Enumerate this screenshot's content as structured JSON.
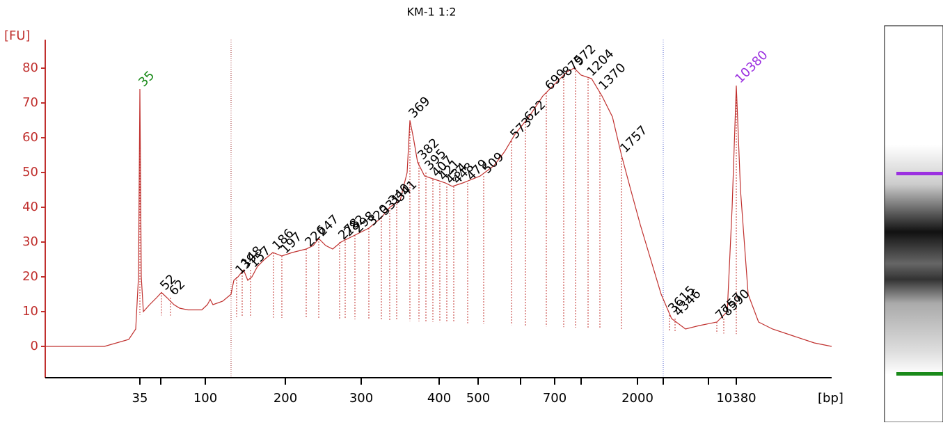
{
  "chart_data": {
    "type": "line",
    "title": "KM-1 1:2",
    "y_label": "[FU]",
    "x_label": "[bp]",
    "color": "#c0302e",
    "xlim": [
      0,
      1130
    ],
    "ylim": [
      -9,
      88.2
    ],
    "yticks": [
      0,
      10,
      20,
      30,
      40,
      50,
      60,
      70,
      80
    ],
    "xticks": [
      {
        "value": 136,
        "label": "35"
      },
      {
        "value": 166,
        "label": null
      },
      {
        "value": 230,
        "label": "100"
      },
      {
        "value": 345,
        "label": "200"
      },
      {
        "value": 454,
        "label": "300"
      },
      {
        "value": 566,
        "label": "400"
      },
      {
        "value": 622,
        "label": "500"
      },
      {
        "value": 683,
        "label": null
      },
      {
        "value": 732,
        "label": "700"
      },
      {
        "value": 770,
        "label": null
      },
      {
        "value": 851,
        "label": "2000"
      },
      {
        "value": 888,
        "label": null
      },
      {
        "value": 953,
        "label": null
      },
      {
        "value": 993,
        "label": "10380"
      }
    ],
    "region": [
      267,
      888
    ],
    "x": [
      0,
      85,
      120,
      130,
      134,
      136,
      138,
      141,
      150,
      160,
      167,
      175,
      185,
      193,
      205,
      225,
      233,
      237,
      241,
      255,
      267,
      271,
      277,
      285,
      291,
      297,
      305,
      315,
      327,
      340,
      355,
      375,
      385,
      393,
      403,
      413,
      425,
      445,
      465,
      483,
      495,
      510,
      520,
      524,
      529,
      535,
      545,
      560,
      575,
      585,
      600,
      625,
      645,
      660,
      675,
      695,
      715,
      735,
      750,
      760,
      770,
      785,
      800,
      815,
      828,
      840,
      855,
      870,
      885,
      900,
      920,
      940,
      965,
      980,
      987,
      993,
      999,
      1010,
      1025,
      1045,
      1075,
      1105,
      1130
    ],
    "values": [
      0,
      0,
      2,
      5,
      20,
      74,
      20,
      10,
      12,
      14,
      15.5,
      14,
      12,
      11,
      10.5,
      10.5,
      12,
      13.5,
      12,
      13,
      15,
      19,
      20,
      22,
      19,
      20,
      23,
      25,
      27,
      26,
      27,
      28,
      29,
      31,
      29,
      28,
      30,
      32,
      34,
      37,
      40,
      42,
      50,
      65,
      60,
      53,
      49,
      48,
      47,
      46,
      47,
      49,
      52,
      56,
      61,
      66,
      72,
      76,
      79,
      80,
      78,
      77,
      72,
      66,
      55,
      46,
      35,
      25,
      15,
      8,
      5,
      6,
      7,
      10,
      40,
      75,
      45,
      15,
      7,
      5,
      3,
      1,
      0
    ],
    "peaks": [
      {
        "label": "35",
        "x": 136,
        "value": 74,
        "color": "#1a8a1a"
      },
      {
        "label": "52",
        "x": 167,
        "value": 15.5
      },
      {
        "label": "62",
        "x": 180,
        "value": 14
      },
      {
        "label": "139",
        "x": 275,
        "value": 20
      },
      {
        "label": "148",
        "x": 283,
        "value": 22
      },
      {
        "label": "157",
        "x": 295,
        "value": 22
      },
      {
        "label": "186",
        "x": 328,
        "value": 27
      },
      {
        "label": "197",
        "x": 340,
        "value": 26
      },
      {
        "label": "226",
        "x": 375,
        "value": 28
      },
      {
        "label": "247",
        "x": 393,
        "value": 31
      },
      {
        "label": "278",
        "x": 423,
        "value": 30
      },
      {
        "label": "282",
        "x": 431,
        "value": 31
      },
      {
        "label": "298",
        "x": 445,
        "value": 32
      },
      {
        "label": "320",
        "x": 465,
        "value": 34
      },
      {
        "label": "331",
        "x": 483,
        "value": 37
      },
      {
        "label": "340",
        "x": 495,
        "value": 40
      },
      {
        "label": "341",
        "x": 505,
        "value": 41
      },
      {
        "label": "369",
        "x": 524,
        "value": 65
      },
      {
        "label": "382",
        "x": 537,
        "value": 53
      },
      {
        "label": "395",
        "x": 547,
        "value": 50
      },
      {
        "label": "407",
        "x": 557,
        "value": 48
      },
      {
        "label": "421",
        "x": 567,
        "value": 47
      },
      {
        "label": "434",
        "x": 577,
        "value": 46
      },
      {
        "label": "448",
        "x": 587,
        "value": 46
      },
      {
        "label": "479",
        "x": 607,
        "value": 47
      },
      {
        "label": "509",
        "x": 630,
        "value": 49
      },
      {
        "label": "573",
        "x": 670,
        "value": 59
      },
      {
        "label": "622",
        "x": 690,
        "value": 64
      },
      {
        "label": "699",
        "x": 720,
        "value": 73
      },
      {
        "label": "875",
        "x": 745,
        "value": 77
      },
      {
        "label": "972",
        "x": 762,
        "value": 80
      },
      {
        "label": "1204",
        "x": 780,
        "value": 77
      },
      {
        "label": "1370",
        "x": 797,
        "value": 73
      },
      {
        "label": "1757",
        "x": 828,
        "value": 55
      },
      {
        "label": "3615",
        "x": 897,
        "value": 9
      },
      {
        "label": "4346",
        "x": 905,
        "value": 8
      },
      {
        "label": "7757",
        "x": 965,
        "value": 7
      },
      {
        "label": "8590",
        "x": 975,
        "value": 8
      },
      {
        "label": "10380",
        "x": 993,
        "value": 75,
        "color": "#9b30e0"
      }
    ]
  }
}
